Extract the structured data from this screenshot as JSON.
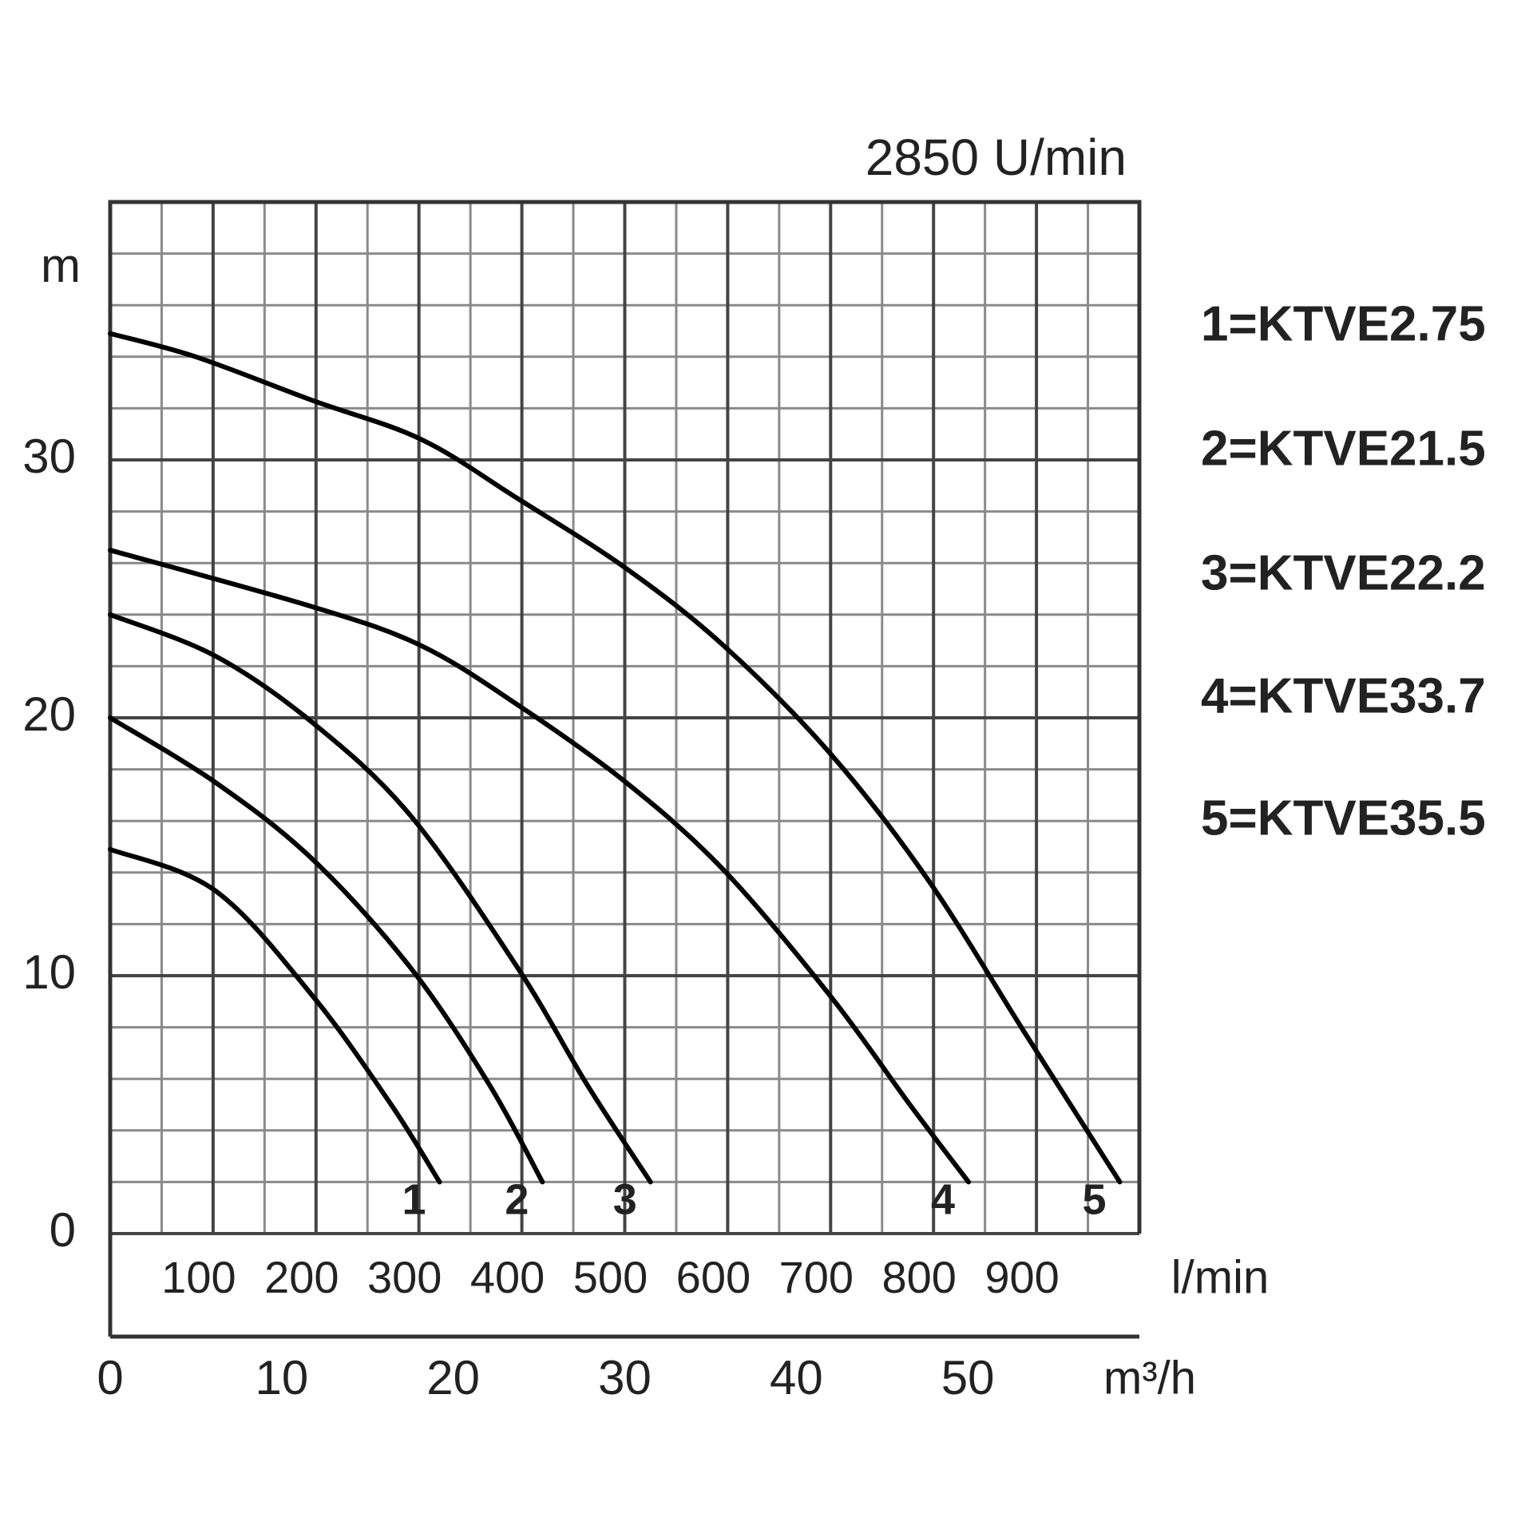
{
  "chart_data": {
    "type": "line",
    "title": "2850 U/min",
    "y_label": "m",
    "x_label": "l/min",
    "x2_label": "m³/h",
    "xlim": [
      0,
      1000
    ],
    "ylim": [
      0,
      40
    ],
    "x2lim": [
      0,
      60
    ],
    "xticks": [
      100,
      200,
      300,
      400,
      500,
      600,
      700,
      800,
      900
    ],
    "minor_xticks": [
      50,
      150,
      250,
      350,
      450,
      550,
      650,
      750,
      850,
      950
    ],
    "yticks": [
      0,
      10,
      20,
      30
    ],
    "minor_yticks": [
      2,
      4,
      6,
      8,
      12,
      14,
      16,
      18,
      22,
      24,
      26,
      28,
      32,
      34,
      36,
      38
    ],
    "x2ticks": [
      0,
      10,
      20,
      30,
      40,
      50
    ],
    "grid": true,
    "series": [
      {
        "name": "1=KTVE2.75",
        "label": "1",
        "color": "#000000",
        "x": [
          0,
          102,
          197,
          273,
          320
        ],
        "values": [
          14.9,
          13.3,
          9.2,
          5,
          2
        ]
      },
      {
        "name": "2=KTVE21.5",
        "label": "2",
        "color": "#000000",
        "x": [
          0,
          102,
          197,
          292,
          368,
          420
        ],
        "values": [
          20,
          17.5,
          14.5,
          10.3,
          5.8,
          2
        ]
      },
      {
        "name": "3=KTVE22.2",
        "label": "3",
        "color": "#000000",
        "x": [
          0,
          102,
          197,
          292,
          396,
          463,
          525
        ],
        "values": [
          24,
          22.4,
          19.8,
          16.2,
          10.3,
          5.8,
          2
        ]
      },
      {
        "name": "4=KTVE33.7",
        "label": "4",
        "color": "#000000",
        "x": [
          0,
          197,
          302,
          396,
          501,
          596,
          700,
          777,
          834
        ],
        "values": [
          26.5,
          24.3,
          22.8,
          20.5,
          17.5,
          14.1,
          9.2,
          5,
          2
        ]
      },
      {
        "name": "5=KTVE35.5",
        "label": "5",
        "color": "#000000",
        "x": [
          0,
          83,
          197,
          302,
          396,
          501,
          596,
          700,
          795,
          890,
          981
        ],
        "values": [
          34.9,
          34,
          32.3,
          30.8,
          28.5,
          25.8,
          22.8,
          18.6,
          13.7,
          7.7,
          2
        ]
      }
    ]
  }
}
